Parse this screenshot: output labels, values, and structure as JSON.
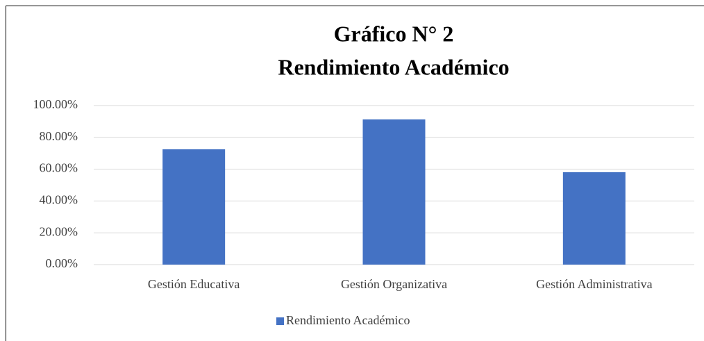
{
  "chart_data": {
    "type": "bar",
    "title": [
      "Gráfico N° 2",
      "Rendimiento Académico"
    ],
    "categories": [
      "Gestión Educativa",
      "Gestión Organizativa",
      "Gestión Administrativa"
    ],
    "series": [
      {
        "name": "Rendimiento Académico",
        "color": "#4472c4",
        "values": [
          72.5,
          91.3,
          58.1
        ]
      }
    ],
    "ylim": [
      0,
      100
    ],
    "yticks": [
      {
        "value": 0,
        "label": "0.00%"
      },
      {
        "value": 20,
        "label": "20.00%"
      },
      {
        "value": 40,
        "label": "40.00%"
      },
      {
        "value": 60,
        "label": "60.00%"
      },
      {
        "value": 80,
        "label": "80.00%"
      },
      {
        "value": 100,
        "label": "100.00%"
      }
    ],
    "grid": true,
    "legend": "bottom"
  }
}
